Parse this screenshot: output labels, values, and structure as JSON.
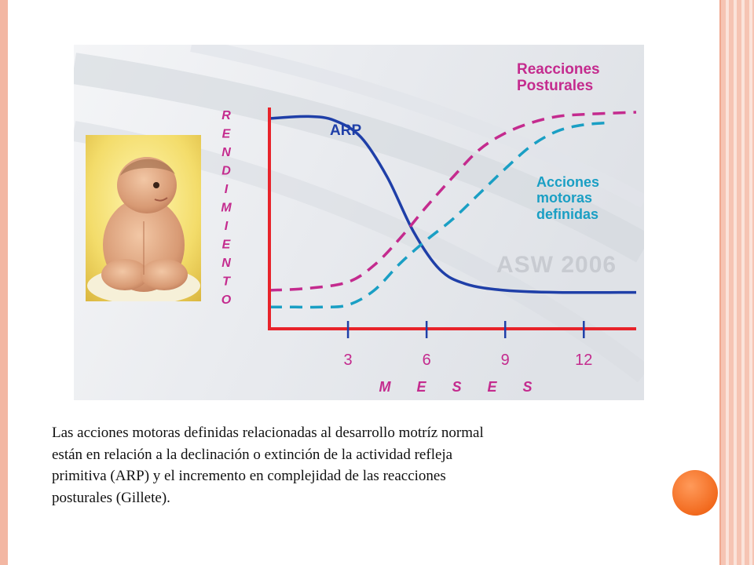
{
  "chart_data": {
    "type": "line",
    "xlabel": "M E S E S",
    "ylabel": "RENDIMIENTO",
    "x_ticks": [
      "3",
      "6",
      "9",
      "12"
    ],
    "x_tick_values": [
      3,
      6,
      9,
      12
    ],
    "xlim": [
      0,
      14
    ],
    "ylim": [
      0,
      100
    ],
    "grid": false,
    "watermark": "ASW 2006",
    "series": [
      {
        "name": "ARP",
        "color": "#1f3fa8",
        "style": "solid",
        "x": [
          0,
          1.5,
          2.5,
          3.5,
          4.5,
          5.5,
          6.5,
          7.5,
          9,
          11,
          14
        ],
        "y": [
          94,
          95,
          93,
          85,
          66,
          40,
          22,
          15,
          12,
          11,
          11
        ]
      },
      {
        "name": "Reacciones Posturales",
        "color": "#c42b8e",
        "style": "dashed",
        "x": [
          0,
          1.5,
          3,
          4,
          5,
          6,
          7,
          8,
          9,
          10,
          11,
          12,
          14
        ],
        "y": [
          12,
          13,
          16,
          24,
          37,
          52,
          66,
          79,
          87,
          92,
          95,
          96,
          97
        ]
      },
      {
        "name": "Acciones motoras definidas",
        "color": "#1a9fc4",
        "style": "dashed",
        "x": [
          0,
          1,
          2,
          3,
          4,
          5,
          6,
          7,
          8,
          9,
          10,
          11,
          12,
          13
        ],
        "y": [
          4,
          4,
          4,
          5,
          12,
          25,
          36,
          46,
          58,
          70,
          81,
          88,
          91,
          92
        ]
      }
    ]
  },
  "caption": {
    "lines": [
      "Las acciones motoras definidas relacionadas al desarrollo motríz normal",
      "están en relación a la declinación o extinción de la actividad refleja",
      "primitiva (ARP)  y el incremento en complejidad de las reacciones",
      "posturales (Gillete)."
    ]
  },
  "labels": {
    "reacciones_line1": "Reacciones",
    "reacciones_line2": "Posturales",
    "acciones_line1": "Acciones",
    "acciones_line2": "motoras",
    "acciones_line3": "definidas"
  },
  "colors": {
    "axis": "#e8232a",
    "label_pink": "#c42b8e",
    "label_blue": "#1a9fc4",
    "label_navy": "#1f3fa8"
  }
}
